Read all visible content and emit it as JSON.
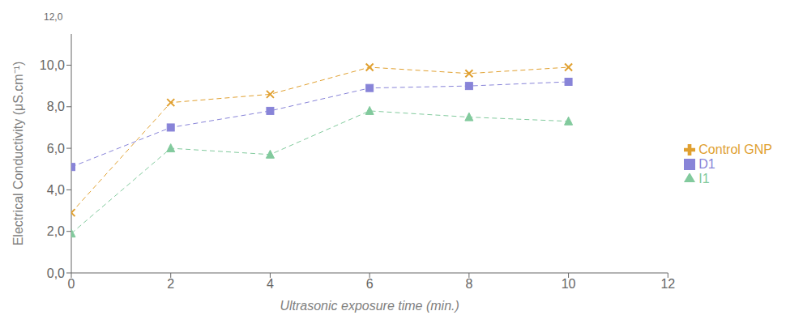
{
  "chart_data": {
    "type": "line",
    "x": [
      0,
      2,
      4,
      6,
      8,
      10
    ],
    "series": [
      {
        "name": "D1",
        "values": [
          5.1,
          7.0,
          7.8,
          8.9,
          9.0,
          9.2
        ],
        "color": "#8884d8",
        "marker": "square",
        "line_style": "dashed"
      },
      {
        "name": "I1",
        "values": [
          1.9,
          6.0,
          5.7,
          7.8,
          7.5,
          7.3
        ],
        "color": "#82ca9d",
        "marker": "triangle",
        "line_style": "dashed"
      },
      {
        "name": "Control GNP",
        "values": [
          2.9,
          8.2,
          8.6,
          9.9,
          9.6,
          9.9
        ],
        "color": "#e0a030",
        "marker": "cross",
        "line_style": "dashed"
      }
    ],
    "xlabel": "Ultrasonic exposure time (min.)",
    "ylabel": "Electrical Conductivity (μS.cm⁻¹)",
    "xlim": [
      0,
      12
    ],
    "ylim": [
      0,
      11.5
    ],
    "xticks": [
      0,
      2,
      4,
      6,
      8,
      10,
      12
    ],
    "yticks": [
      {
        "value": 0.0,
        "label": "0,0"
      },
      {
        "value": 2.0,
        "label": "2,0"
      },
      {
        "value": 4.0,
        "label": "4,0"
      },
      {
        "value": 6.0,
        "label": "6,0"
      },
      {
        "value": 8.0,
        "label": "8,0"
      },
      {
        "value": 10.0,
        "label": "10,0"
      }
    ],
    "annotations": [
      {
        "text": "12,0"
      }
    ],
    "grid": false,
    "legend": "right"
  }
}
